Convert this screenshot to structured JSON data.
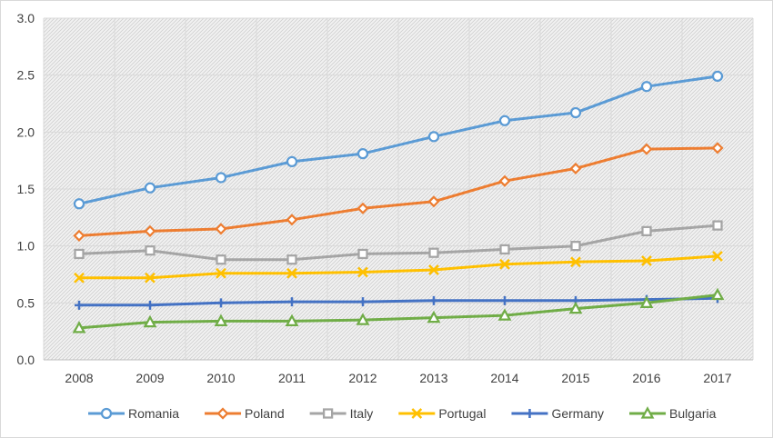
{
  "chart_data": {
    "type": "line",
    "title": "",
    "xlabel": "",
    "ylabel": "",
    "categories": [
      "2008",
      "2009",
      "2010",
      "2011",
      "2012",
      "2013",
      "2014",
      "2015",
      "2016",
      "2017"
    ],
    "ylim": [
      0,
      3.0
    ],
    "yticks": [
      "0.0",
      "0.5",
      "1.0",
      "1.5",
      "2.0",
      "2.5",
      "3.0"
    ],
    "grid": true,
    "legend_position": "bottom",
    "series": [
      {
        "name": "Romania",
        "color": "#5b9bd5",
        "marker": "circle",
        "values": [
          1.37,
          1.51,
          1.6,
          1.74,
          1.81,
          1.96,
          2.1,
          2.17,
          2.4,
          2.49
        ]
      },
      {
        "name": "Poland",
        "color": "#ed7d31",
        "marker": "diamond",
        "values": [
          1.09,
          1.13,
          1.15,
          1.23,
          1.33,
          1.39,
          1.57,
          1.68,
          1.85,
          1.86
        ]
      },
      {
        "name": "Italy",
        "color": "#a5a5a5",
        "marker": "square",
        "values": [
          0.93,
          0.96,
          0.88,
          0.88,
          0.93,
          0.94,
          0.97,
          1.0,
          1.13,
          1.18
        ]
      },
      {
        "name": "Portugal",
        "color": "#ffc000",
        "marker": "x",
        "values": [
          0.72,
          0.72,
          0.76,
          0.76,
          0.77,
          0.79,
          0.84,
          0.86,
          0.87,
          0.91
        ]
      },
      {
        "name": "Germany",
        "color": "#4472c4",
        "marker": "plus",
        "values": [
          0.48,
          0.48,
          0.5,
          0.51,
          0.51,
          0.52,
          0.52,
          0.52,
          0.53,
          0.54
        ]
      },
      {
        "name": "Bulgaria",
        "color": "#70ad47",
        "marker": "triangle",
        "values": [
          0.28,
          0.33,
          0.34,
          0.34,
          0.35,
          0.37,
          0.39,
          0.45,
          0.5,
          0.57
        ]
      }
    ]
  }
}
